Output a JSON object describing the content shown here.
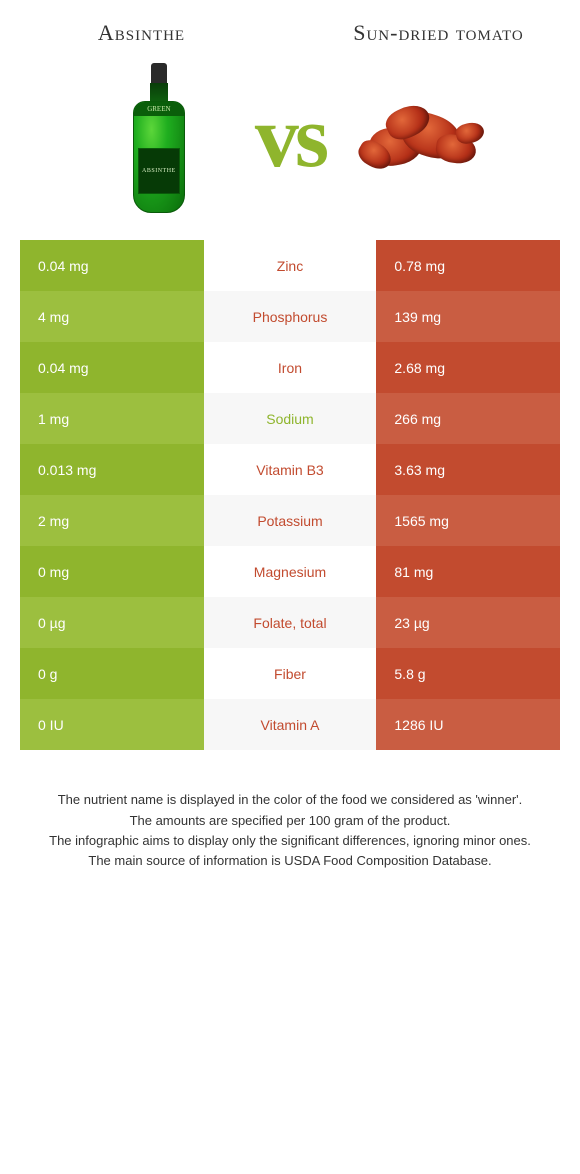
{
  "titleLeft": "Absinthe",
  "titleRight": "Sun-dried tomato",
  "vs": "vs",
  "bottleBand": "GREEN",
  "bottleLabel": "ABSINTHE",
  "colors": {
    "green": "#8fb52d",
    "greenAlt": "#9cbf3f",
    "red": "#c24b2f",
    "redAlt": "#c95d42",
    "nutrientGreen": "#8fb52d",
    "nutrientRed": "#c24b2f"
  },
  "rows": [
    {
      "nutrient": "Zinc",
      "left": "0.04 mg",
      "right": "0.78 mg",
      "winner": "right"
    },
    {
      "nutrient": "Phosphorus",
      "left": "4 mg",
      "right": "139 mg",
      "winner": "right"
    },
    {
      "nutrient": "Iron",
      "left": "0.04 mg",
      "right": "2.68 mg",
      "winner": "right"
    },
    {
      "nutrient": "Sodium",
      "left": "1 mg",
      "right": "266 mg",
      "winner": "left"
    },
    {
      "nutrient": "Vitamin B3",
      "left": "0.013 mg",
      "right": "3.63 mg",
      "winner": "right"
    },
    {
      "nutrient": "Potassium",
      "left": "2 mg",
      "right": "1565 mg",
      "winner": "right"
    },
    {
      "nutrient": "Magnesium",
      "left": "0 mg",
      "right": "81 mg",
      "winner": "right"
    },
    {
      "nutrient": "Folate, total",
      "left": "0 µg",
      "right": "23 µg",
      "winner": "right"
    },
    {
      "nutrient": "Fiber",
      "left": "0 g",
      "right": "5.8 g",
      "winner": "right"
    },
    {
      "nutrient": "Vitamin A",
      "left": "0 IU",
      "right": "1286 IU",
      "winner": "right"
    }
  ],
  "footer": [
    "The nutrient name is displayed in the color of the food we considered as 'winner'.",
    "The amounts are specified per 100 gram of the product.",
    "The infographic aims to display only the significant differences, ignoring minor ones.",
    "The main source of information is USDA Food Composition Database."
  ]
}
